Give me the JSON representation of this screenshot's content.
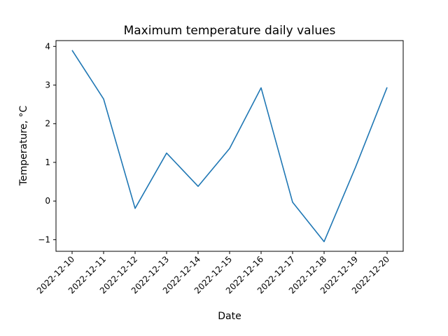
{
  "chart_data": {
    "type": "line",
    "title": "Maximum temperature daily values",
    "xlabel": "Date",
    "ylabel": "Temperature, °C",
    "x": [
      "2022-12-10",
      "2022-12-11",
      "2022-12-12",
      "2022-12-13",
      "2022-12-14",
      "2022-12-15",
      "2022-12-16",
      "2022-12-17",
      "2022-12-18",
      "2022-12-19",
      "2022-12-20"
    ],
    "series": [
      {
        "values": [
          3.9,
          2.64,
          -0.19,
          1.24,
          0.38,
          1.36,
          2.93,
          -0.03,
          -1.05,
          0.88,
          2.94
        ],
        "color": "#1f77b4"
      }
    ],
    "yticks": [
      "−1",
      "0",
      "1",
      "2",
      "3",
      "4"
    ],
    "ytick_values": [
      -1,
      0,
      1,
      2,
      3,
      4
    ],
    "ylim": [
      -1.3,
      4.15
    ],
    "grid": false,
    "legend": "none"
  }
}
